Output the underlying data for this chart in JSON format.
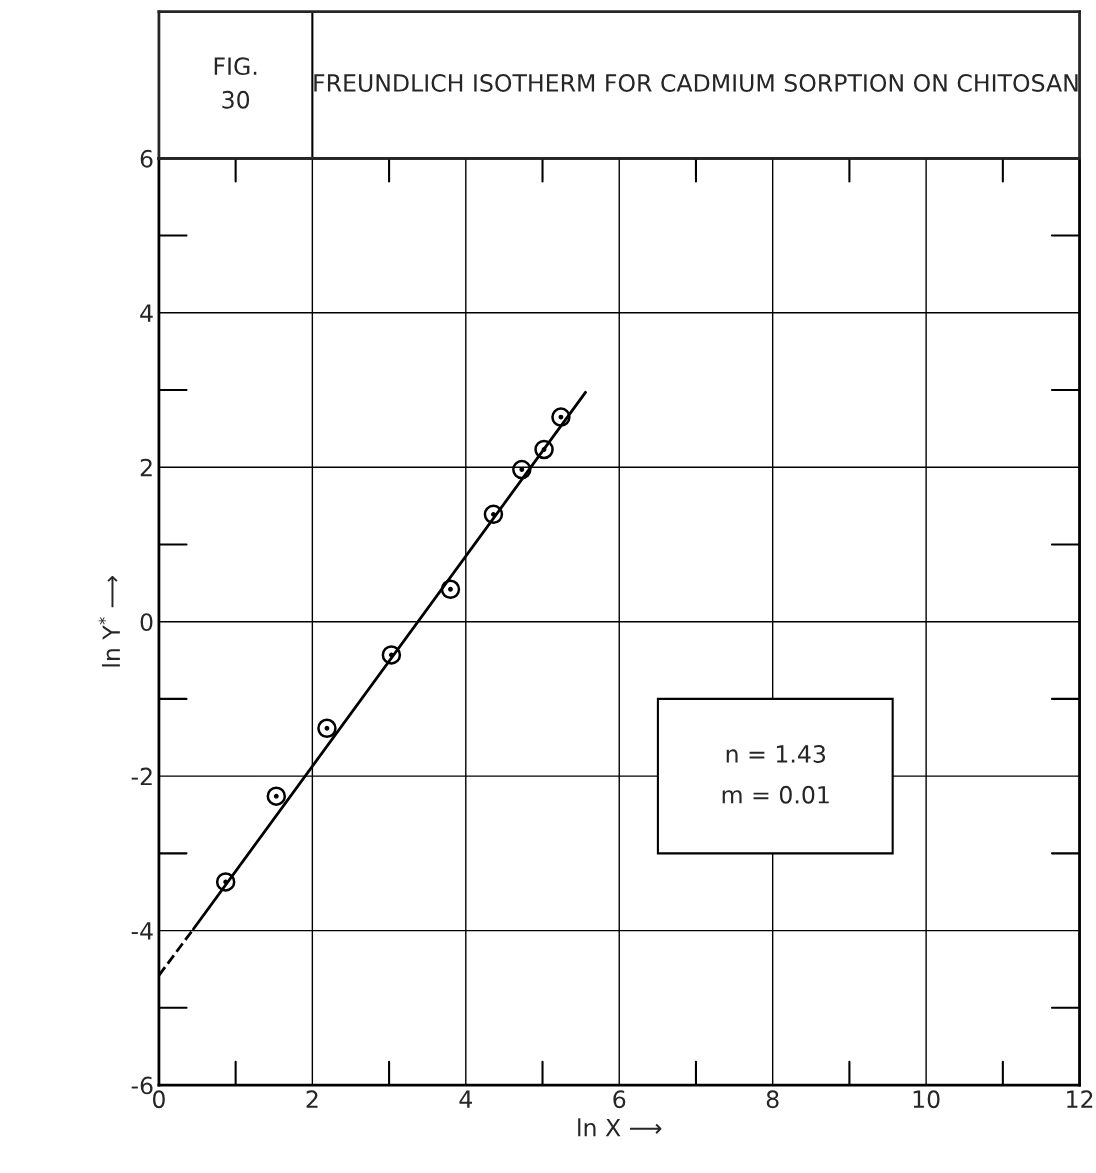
{
  "chart_data": {
    "type": "scatter",
    "title": "FIG. 30",
    "subtitle": "FREUNDLICH ISOTHERM FOR CADMIUM SORPTION ON CHITOSAN",
    "xlabel": "ln X ⟶",
    "ylabel": "ln Y$^{*}$ ⟶",
    "series": [
      {
        "type": "scatter",
        "color": "#000000",
        "marker": "circle",
        "x": [
          0.87,
          1.53,
          2.19,
          3.03,
          3.8,
          4.36,
          4.73,
          5.02,
          5.24
        ],
        "values": [
          -3.37,
          -2.26,
          -1.38,
          -0.43,
          0.42,
          1.39,
          1.97,
          2.23,
          2.65
        ]
      },
      {
        "type": "line",
        "color": "#000000",
        "line_style": "solid",
        "x": [
          0.45,
          5.56
        ],
        "values": [
          -3.98,
          2.97
        ]
      },
      {
        "type": "line",
        "color": "#000000",
        "line_style": "dashed",
        "x": [
          0,
          0.45
        ],
        "values": [
          -4.58,
          -3.98
        ]
      }
    ],
    "annotations": [
      {
        "text": "n = 1.43\nm = 0.01"
      }
    ],
    "xlim": [
      0,
      12
    ],
    "ylim": [
      -6,
      6
    ],
    "xticks": [
      0,
      2,
      4,
      6,
      8,
      10,
      12
    ],
    "yticks": [
      {
        "value": -6,
        "label": "-6"
      },
      {
        "value": -4,
        "label": "-4"
      },
      {
        "value": -2,
        "label": "-2"
      },
      0,
      2,
      4,
      6
    ],
    "grid": true
  }
}
